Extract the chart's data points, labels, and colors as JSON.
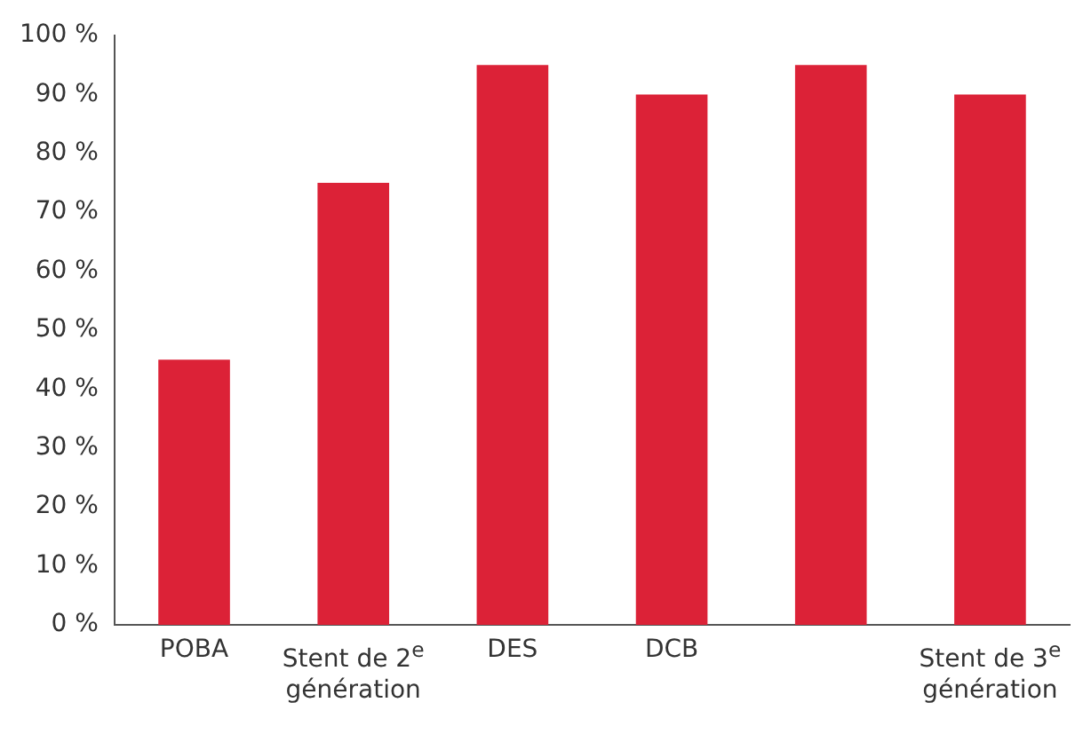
{
  "chart_data": {
    "type": "bar",
    "categories": [
      "POBA",
      "Stent de 2$^{e}$ génération",
      "DES",
      "DCB",
      null,
      "Stent de 3$^{e}$ génération"
    ],
    "values": [
      45,
      75,
      95,
      90,
      95,
      90
    ],
    "color": "#dc2237",
    "ylim": [
      0,
      100
    ],
    "yticks": [
      {
        "value": 0,
        "label": "0 %"
      },
      {
        "value": 10,
        "label": "10 %"
      },
      {
        "value": 20,
        "label": "20 %"
      },
      {
        "value": 30,
        "label": "30 %"
      },
      {
        "value": 40,
        "label": "40 %"
      },
      {
        "value": 50,
        "label": "50 %"
      },
      {
        "value": 60,
        "label": "60 %"
      },
      {
        "value": 70,
        "label": "70 %"
      },
      {
        "value": 80,
        "label": "80 %"
      },
      {
        "value": 90,
        "label": "90 %"
      },
      {
        "value": 100,
        "label": "100 %"
      }
    ],
    "grid": false
  }
}
